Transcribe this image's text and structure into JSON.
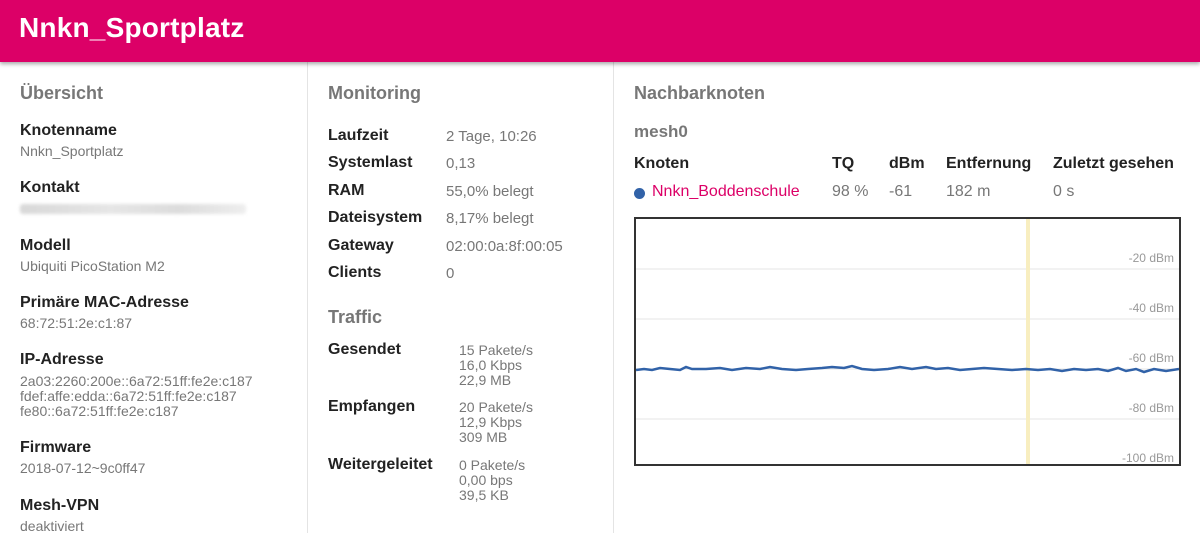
{
  "header": {
    "title": "Nnkn_Sportplatz"
  },
  "overview": {
    "title": "Übersicht",
    "knotenname_label": "Knotenname",
    "knotenname_value": "Nnkn_Sportplatz",
    "kontakt_label": "Kontakt",
    "modell_label": "Modell",
    "modell_value": "Ubiquiti PicoStation M2",
    "mac_label": "Primäre MAC-Adresse",
    "mac_value": "68:72:51:2e:c1:87",
    "ip_label": "IP-Adresse",
    "ip_values": [
      "2a03:2260:200e::6a72:51ff:fe2e:c187",
      "fdef:affe:edda::6a72:51ff:fe2e:c187",
      "fe80::6a72:51ff:fe2e:c187"
    ],
    "firmware_label": "Firmware",
    "firmware_value": "2018-07-12~9c0ff47",
    "meshvpn_label": "Mesh-VPN",
    "meshvpn_value": "deaktiviert"
  },
  "monitoring": {
    "title": "Monitoring",
    "rows": [
      {
        "label": "Laufzeit",
        "value": "2 Tage, 10:26"
      },
      {
        "label": "Systemlast",
        "value": "0,13"
      },
      {
        "label": "RAM",
        "value": "55,0% belegt"
      },
      {
        "label": "Dateisystem",
        "value": "8,17% belegt"
      },
      {
        "label": "Gateway",
        "value": "02:00:0a:8f:00:05"
      },
      {
        "label": "Clients",
        "value": "0"
      }
    ],
    "traffic_title": "Traffic",
    "traffic": [
      {
        "label": "Gesendet",
        "values": [
          "15 Pakete/s",
          "16,0 Kbps",
          "22,9 MB"
        ]
      },
      {
        "label": "Empfangen",
        "values": [
          "20 Pakete/s",
          "12,9 Kbps",
          "309 MB"
        ]
      },
      {
        "label": "Weitergeleitet",
        "values": [
          "0 Pakete/s",
          "0,00 bps",
          "39,5 KB"
        ]
      }
    ]
  },
  "neighbours": {
    "title": "Nachbarknoten",
    "interface": "mesh0",
    "headers": {
      "node": "Knoten",
      "tq": "TQ",
      "dbm": "dBm",
      "distance": "Entfernung",
      "last_seen": "Zuletzt gesehen"
    },
    "rows": [
      {
        "node": "Nnkn_Boddenschule",
        "tq": "98 %",
        "dbm": "-61",
        "distance": "182 m",
        "last_seen": "0 s",
        "color": "#3162a8"
      }
    ]
  },
  "signal_chart": {
    "y_ticks": [
      "-20 dBm",
      "-40 dBm",
      "-60 dBm",
      "-80 dBm",
      "-100 dBm"
    ],
    "series_color": "#3162a8",
    "marker_color": "#f8eec0"
  }
}
